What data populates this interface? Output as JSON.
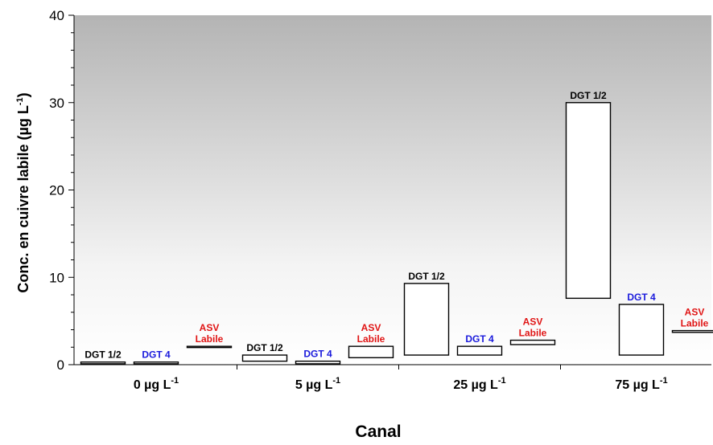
{
  "chart_data": {
    "type": "floating-bar",
    "xlabel": "Canal",
    "ylabel": "Conc. en cuivre labile (µg L",
    "ylabel_sup": "-1",
    "ylabel_close": ")",
    "ylim": [
      0,
      40
    ],
    "yticks": [
      "0",
      "10",
      "20",
      "30",
      "40"
    ],
    "grid": false,
    "background": "grey-to-white vertical gradient",
    "categories": [
      {
        "label": "0 µg L",
        "sup": "-1"
      },
      {
        "label": "5 µg L",
        "sup": "-1"
      },
      {
        "label": "25 µg L",
        "sup": "-1"
      },
      {
        "label": "75 µg L",
        "sup": "-1"
      }
    ],
    "series": [
      {
        "lines": [
          "DGT 1/2"
        ],
        "color": "#000000",
        "ranges": [
          [
            0.1,
            0.3
          ],
          [
            0.4,
            1.1
          ],
          [
            1.1,
            9.3
          ],
          [
            7.6,
            30.0
          ]
        ]
      },
      {
        "lines": [
          "DGT 4"
        ],
        "color": "#1a1adc",
        "ranges": [
          [
            0.1,
            0.3
          ],
          [
            0.1,
            0.4
          ],
          [
            1.1,
            2.1
          ],
          [
            1.1,
            6.9
          ]
        ]
      },
      {
        "lines": [
          "ASV",
          "Labile"
        ],
        "color": "#e01414",
        "ranges": [
          [
            2.0,
            2.1
          ],
          [
            0.8,
            2.1
          ],
          [
            2.3,
            2.8
          ],
          [
            3.7,
            3.9
          ]
        ]
      }
    ]
  }
}
